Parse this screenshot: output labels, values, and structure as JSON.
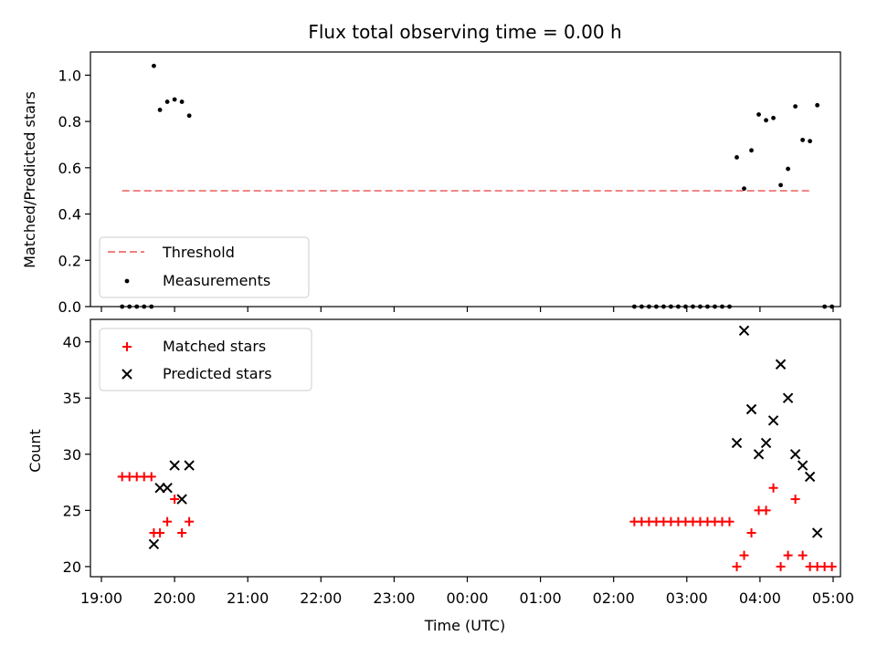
{
  "chart_data": [
    {
      "type": "scatter",
      "title": "Flux total observing time = 0.00 h",
      "ylabel": "Matched/Predicted stars",
      "xlim_hours": [
        18.85,
        29.1
      ],
      "ylim": [
        0,
        1.1
      ],
      "yticks": [
        0.0,
        0.2,
        0.4,
        0.6,
        0.8,
        1.0
      ],
      "ytick_labels": [
        "0.0",
        "0.2",
        "0.4",
        "0.6",
        "0.8",
        "1.0"
      ],
      "legend_position": "lower-left",
      "threshold": {
        "name": "Threshold",
        "value": 0.5,
        "x_start": "19:17",
        "x_end": "04:42",
        "color": "#f08080",
        "style": "dashed"
      },
      "series": [
        {
          "name": "Measurements",
          "marker": "dot",
          "color": "#000000",
          "points": [
            {
              "x": "19:17",
              "y": 0.0
            },
            {
              "x": "19:23",
              "y": 0.0
            },
            {
              "x": "19:29",
              "y": 0.0
            },
            {
              "x": "19:35",
              "y": 0.0
            },
            {
              "x": "19:41",
              "y": 0.0
            },
            {
              "x": "19:43",
              "y": 1.04
            },
            {
              "x": "19:48",
              "y": 0.85
            },
            {
              "x": "19:54",
              "y": 0.885
            },
            {
              "x": "20:00",
              "y": 0.895
            },
            {
              "x": "20:06",
              "y": 0.885
            },
            {
              "x": "20:12",
              "y": 0.825
            },
            {
              "x": "02:17",
              "y": 0.0
            },
            {
              "x": "02:23",
              "y": 0.0
            },
            {
              "x": "02:29",
              "y": 0.0
            },
            {
              "x": "02:35",
              "y": 0.0
            },
            {
              "x": "02:41",
              "y": 0.0
            },
            {
              "x": "02:47",
              "y": 0.0
            },
            {
              "x": "02:53",
              "y": 0.0
            },
            {
              "x": "02:59",
              "y": 0.0
            },
            {
              "x": "03:05",
              "y": 0.0
            },
            {
              "x": "03:11",
              "y": 0.0
            },
            {
              "x": "03:17",
              "y": 0.0
            },
            {
              "x": "03:23",
              "y": 0.0
            },
            {
              "x": "03:29",
              "y": 0.0
            },
            {
              "x": "03:35",
              "y": 0.0
            },
            {
              "x": "03:41",
              "y": 0.645
            },
            {
              "x": "03:47",
              "y": 0.51
            },
            {
              "x": "03:53",
              "y": 0.675
            },
            {
              "x": "03:59",
              "y": 0.83
            },
            {
              "x": "04:05",
              "y": 0.805
            },
            {
              "x": "04:11",
              "y": 0.815
            },
            {
              "x": "04:17",
              "y": 0.525
            },
            {
              "x": "04:23",
              "y": 0.595
            },
            {
              "x": "04:29",
              "y": 0.865
            },
            {
              "x": "04:35",
              "y": 0.72
            },
            {
              "x": "04:41",
              "y": 0.715
            },
            {
              "x": "04:47",
              "y": 0.87
            },
            {
              "x": "04:53",
              "y": 0.0
            },
            {
              "x": "04:59",
              "y": 0.0
            }
          ]
        }
      ]
    },
    {
      "type": "scatter",
      "xlabel": "Time (UTC)",
      "ylabel": "Count",
      "xlim_hours": [
        18.85,
        29.1
      ],
      "ylim": [
        19.1,
        42.0
      ],
      "yticks": [
        20,
        25,
        30,
        35,
        40
      ],
      "ytick_labels": [
        "20",
        "25",
        "30",
        "35",
        "40"
      ],
      "xticks_hours": [
        19,
        20,
        21,
        22,
        23,
        24,
        25,
        26,
        27,
        28,
        29
      ],
      "xtick_labels": [
        "19:00",
        "20:00",
        "21:00",
        "22:00",
        "23:00",
        "00:00",
        "01:00",
        "02:00",
        "03:00",
        "04:00",
        "05:00"
      ],
      "legend_position": "upper-left",
      "series": [
        {
          "name": "Matched stars",
          "marker": "plus",
          "color": "#ff0000",
          "points": [
            {
              "x": "19:17",
              "y": 28
            },
            {
              "x": "19:23",
              "y": 28
            },
            {
              "x": "19:29",
              "y": 28
            },
            {
              "x": "19:35",
              "y": 28
            },
            {
              "x": "19:41",
              "y": 28
            },
            {
              "x": "19:43",
              "y": 23
            },
            {
              "x": "19:48",
              "y": 23
            },
            {
              "x": "19:54",
              "y": 24
            },
            {
              "x": "20:00",
              "y": 26
            },
            {
              "x": "20:06",
              "y": 23
            },
            {
              "x": "20:12",
              "y": 24
            },
            {
              "x": "02:17",
              "y": 24
            },
            {
              "x": "02:23",
              "y": 24
            },
            {
              "x": "02:29",
              "y": 24
            },
            {
              "x": "02:35",
              "y": 24
            },
            {
              "x": "02:41",
              "y": 24
            },
            {
              "x": "02:47",
              "y": 24
            },
            {
              "x": "02:53",
              "y": 24
            },
            {
              "x": "02:59",
              "y": 24
            },
            {
              "x": "03:05",
              "y": 24
            },
            {
              "x": "03:11",
              "y": 24
            },
            {
              "x": "03:17",
              "y": 24
            },
            {
              "x": "03:23",
              "y": 24
            },
            {
              "x": "03:29",
              "y": 24
            },
            {
              "x": "03:35",
              "y": 24
            },
            {
              "x": "03:41",
              "y": 20
            },
            {
              "x": "03:47",
              "y": 21
            },
            {
              "x": "03:53",
              "y": 23
            },
            {
              "x": "03:59",
              "y": 25
            },
            {
              "x": "04:05",
              "y": 25
            },
            {
              "x": "04:11",
              "y": 27
            },
            {
              "x": "04:17",
              "y": 20
            },
            {
              "x": "04:23",
              "y": 21
            },
            {
              "x": "04:29",
              "y": 26
            },
            {
              "x": "04:35",
              "y": 21
            },
            {
              "x": "04:41",
              "y": 20
            },
            {
              "x": "04:47",
              "y": 20
            },
            {
              "x": "04:53",
              "y": 20
            },
            {
              "x": "04:59",
              "y": 20
            }
          ]
        },
        {
          "name": "Predicted stars",
          "marker": "x",
          "color": "#000000",
          "points": [
            {
              "x": "19:43",
              "y": 22
            },
            {
              "x": "19:48",
              "y": 27
            },
            {
              "x": "19:54",
              "y": 27
            },
            {
              "x": "20:00",
              "y": 29
            },
            {
              "x": "20:06",
              "y": 26
            },
            {
              "x": "20:12",
              "y": 29
            },
            {
              "x": "03:41",
              "y": 31
            },
            {
              "x": "03:47",
              "y": 41
            },
            {
              "x": "03:53",
              "y": 34
            },
            {
              "x": "03:59",
              "y": 30
            },
            {
              "x": "04:05",
              "y": 31
            },
            {
              "x": "04:11",
              "y": 33
            },
            {
              "x": "04:17",
              "y": 38
            },
            {
              "x": "04:23",
              "y": 35
            },
            {
              "x": "04:29",
              "y": 30
            },
            {
              "x": "04:35",
              "y": 29
            },
            {
              "x": "04:41",
              "y": 28
            },
            {
              "x": "04:47",
              "y": 23
            }
          ]
        }
      ]
    }
  ]
}
